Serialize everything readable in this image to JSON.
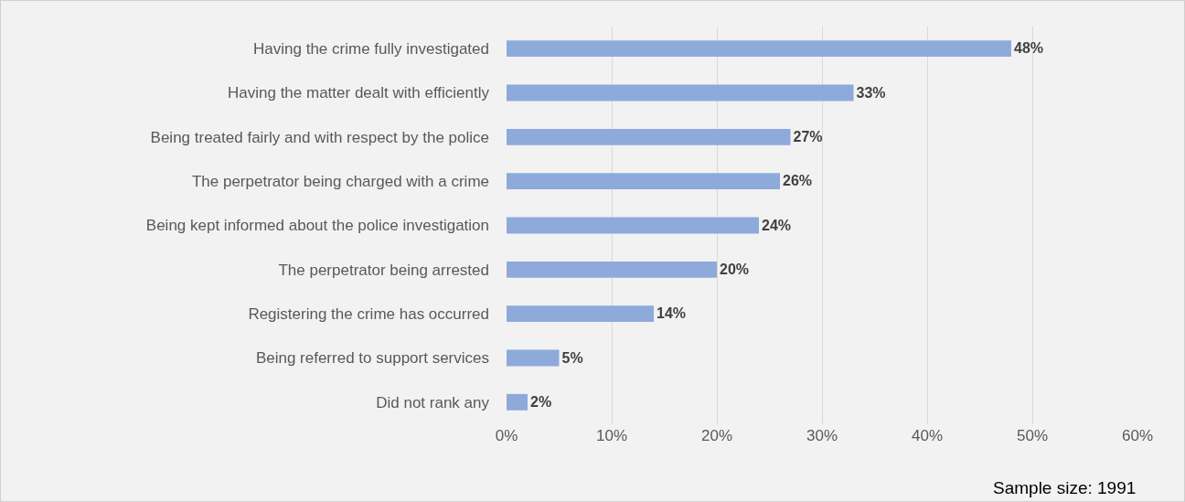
{
  "chart_data": {
    "type": "bar",
    "orientation": "horizontal",
    "categories": [
      "Having the crime fully investigated",
      "Having the matter dealt with efficiently",
      "Being treated fairly and with respect by the police",
      "The perpetrator being charged with a crime",
      "Being kept informed about the police investigation",
      "The perpetrator being arrested",
      "Registering the crime has occurred",
      "Being referred to support services",
      "Did not rank any"
    ],
    "values": [
      48,
      33,
      27,
      26,
      24,
      20,
      14,
      5,
      2
    ],
    "value_labels": [
      "48%",
      "33%",
      "27%",
      "26%",
      "24%",
      "20%",
      "14%",
      "5%",
      "2%"
    ],
    "color": "#8eaadb",
    "xlim": [
      0,
      60
    ],
    "xticks": [
      {
        "value": 0,
        "label": "0%"
      },
      {
        "value": 10,
        "label": "10%"
      },
      {
        "value": 20,
        "label": "20%"
      },
      {
        "value": 30,
        "label": "30%"
      },
      {
        "value": 40,
        "label": "40%"
      },
      {
        "value": 50,
        "label": "50%"
      },
      {
        "value": 60,
        "label": "60%"
      }
    ],
    "grid": "x",
    "annotations": [
      "Sample size: 1991"
    ]
  }
}
